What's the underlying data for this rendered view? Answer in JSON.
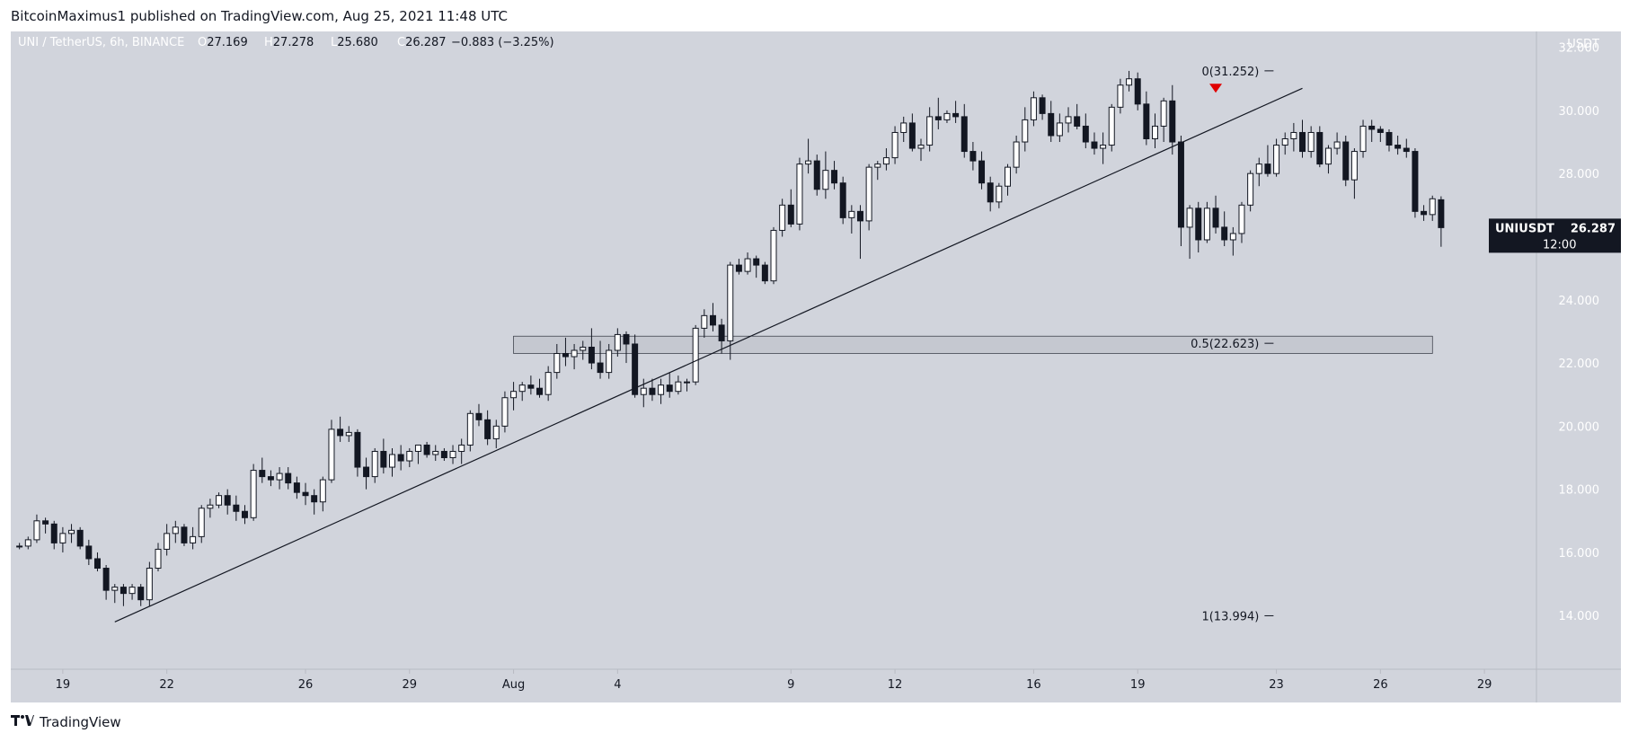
{
  "header": {
    "published": "BitcoinMaximus1 published on TradingView.com, Aug 25, 2021 11:48 UTC"
  },
  "footer": {
    "brand": "TradingView",
    "logo": "tv-logo-icon"
  },
  "colors": {
    "background": "#d1d4dc",
    "candle_up": "#ffffff",
    "candle_down": "#131722",
    "marker": "#e00000",
    "zone": "#c3c6ce"
  },
  "chart_data": {
    "type": "candlestick",
    "symbol": "UNI / TetherUS, 6h, BINANCE",
    "ohlc": {
      "o_label": "O",
      "o": "27.169",
      "h_label": "H",
      "h": "27.278",
      "l_label": "L",
      "l": "25.680",
      "c_label": "C",
      "c": "26.287",
      "change": "−0.883 (−3.25%)"
    },
    "currency": "USDT",
    "last_price": {
      "ticker": "UNIUSDT",
      "price": "26.287",
      "countdown": "12:00"
    },
    "ylim": [
      12.3,
      32.5
    ],
    "y_ticks": [
      {
        "v": 14,
        "label": "14.000"
      },
      {
        "v": 16,
        "label": "16.000"
      },
      {
        "v": 18,
        "label": "18.000"
      },
      {
        "v": 20,
        "label": "20.000"
      },
      {
        "v": 22,
        "label": "22.000"
      },
      {
        "v": 24,
        "label": "24.000"
      },
      {
        "v": 26,
        "label": "26.000"
      },
      {
        "v": 28,
        "label": "28.000"
      },
      {
        "v": 30,
        "label": "30.000"
      },
      {
        "v": 32,
        "label": "32.000"
      }
    ],
    "x_range": [
      "2021-07-17T12:00",
      "2021-08-30T12:00"
    ],
    "x_ticks": [
      {
        "t": "2021-07-19",
        "label": "19"
      },
      {
        "t": "2021-07-22",
        "label": "22"
      },
      {
        "t": "2021-07-26",
        "label": "26"
      },
      {
        "t": "2021-07-29",
        "label": "29"
      },
      {
        "t": "2021-08-01",
        "label": "Aug"
      },
      {
        "t": "2021-08-04",
        "label": "4"
      },
      {
        "t": "2021-08-09",
        "label": "9"
      },
      {
        "t": "2021-08-12",
        "label": "12"
      },
      {
        "t": "2021-08-16",
        "label": "16"
      },
      {
        "t": "2021-08-19",
        "label": "19"
      },
      {
        "t": "2021-08-23",
        "label": "23"
      },
      {
        "t": "2021-08-26",
        "label": "26"
      },
      {
        "t": "2021-08-29",
        "label": "29"
      }
    ],
    "candles_start": "2021-07-17T18:00",
    "candle_interval_hours": 6,
    "candles": [
      [
        16.2,
        16.3,
        16.1,
        16.2
      ],
      [
        16.2,
        16.5,
        16.1,
        16.4
      ],
      [
        16.4,
        17.2,
        16.3,
        17.0
      ],
      [
        17.0,
        17.1,
        16.6,
        16.9
      ],
      [
        16.9,
        17.0,
        16.1,
        16.3
      ],
      [
        16.3,
        16.8,
        16.0,
        16.6
      ],
      [
        16.6,
        16.9,
        16.3,
        16.7
      ],
      [
        16.7,
        16.8,
        16.1,
        16.2
      ],
      [
        16.2,
        16.4,
        15.6,
        15.8
      ],
      [
        15.8,
        16.0,
        15.4,
        15.5
      ],
      [
        15.5,
        15.6,
        14.5,
        14.8
      ],
      [
        14.8,
        15.0,
        14.4,
        14.9
      ],
      [
        14.9,
        15.0,
        14.3,
        14.7
      ],
      [
        14.7,
        15.0,
        14.5,
        14.9
      ],
      [
        14.9,
        15.0,
        14.3,
        14.5
      ],
      [
        14.5,
        15.7,
        14.3,
        15.5
      ],
      [
        15.5,
        16.3,
        15.4,
        16.1
      ],
      [
        16.1,
        16.9,
        15.9,
        16.6
      ],
      [
        16.6,
        17.0,
        16.3,
        16.8
      ],
      [
        16.8,
        16.9,
        16.2,
        16.3
      ],
      [
        16.3,
        16.8,
        16.1,
        16.5
      ],
      [
        16.5,
        17.5,
        16.3,
        17.4
      ],
      [
        17.4,
        17.7,
        17.1,
        17.5
      ],
      [
        17.5,
        17.9,
        17.4,
        17.8
      ],
      [
        17.8,
        18.0,
        17.2,
        17.5
      ],
      [
        17.5,
        17.8,
        17.0,
        17.3
      ],
      [
        17.3,
        17.5,
        16.9,
        17.1
      ],
      [
        17.1,
        18.8,
        17.0,
        18.6
      ],
      [
        18.6,
        19.0,
        18.2,
        18.4
      ],
      [
        18.4,
        18.6,
        18.1,
        18.3
      ],
      [
        18.3,
        18.7,
        18.0,
        18.5
      ],
      [
        18.5,
        18.7,
        18.0,
        18.2
      ],
      [
        18.2,
        18.4,
        17.7,
        17.9
      ],
      [
        17.9,
        18.2,
        17.5,
        17.8
      ],
      [
        17.8,
        18.0,
        17.2,
        17.6
      ],
      [
        17.6,
        18.4,
        17.3,
        18.3
      ],
      [
        18.3,
        20.2,
        18.2,
        19.9
      ],
      [
        19.9,
        20.3,
        19.5,
        19.7
      ],
      [
        19.7,
        20.0,
        19.5,
        19.8
      ],
      [
        19.8,
        19.9,
        18.4,
        18.7
      ],
      [
        18.7,
        19.0,
        18.0,
        18.4
      ],
      [
        18.4,
        19.3,
        18.2,
        19.2
      ],
      [
        19.2,
        19.6,
        18.5,
        18.7
      ],
      [
        18.7,
        19.3,
        18.4,
        19.1
      ],
      [
        19.1,
        19.4,
        18.6,
        18.9
      ],
      [
        18.9,
        19.3,
        18.7,
        19.2
      ],
      [
        19.2,
        19.4,
        18.8,
        19.4
      ],
      [
        19.4,
        19.5,
        19.0,
        19.1
      ],
      [
        19.1,
        19.4,
        18.9,
        19.2
      ],
      [
        19.2,
        19.3,
        18.9,
        19.0
      ],
      [
        19.0,
        19.4,
        18.8,
        19.2
      ],
      [
        19.2,
        19.6,
        18.8,
        19.4
      ],
      [
        19.4,
        20.5,
        19.2,
        20.4
      ],
      [
        20.4,
        20.7,
        20.0,
        20.2
      ],
      [
        20.2,
        20.5,
        19.4,
        19.6
      ],
      [
        19.6,
        20.2,
        19.3,
        20.0
      ],
      [
        20.0,
        21.1,
        19.8,
        20.9
      ],
      [
        20.9,
        21.4,
        20.5,
        21.1
      ],
      [
        21.1,
        21.4,
        20.8,
        21.3
      ],
      [
        21.3,
        21.6,
        21.0,
        21.2
      ],
      [
        21.2,
        21.5,
        20.9,
        21.0
      ],
      [
        21.0,
        21.9,
        20.8,
        21.7
      ],
      [
        21.7,
        22.6,
        21.5,
        22.3
      ],
      [
        22.3,
        22.8,
        21.9,
        22.2
      ],
      [
        22.2,
        22.6,
        21.8,
        22.4
      ],
      [
        22.4,
        22.7,
        22.1,
        22.5
      ],
      [
        22.5,
        23.1,
        21.8,
        22.0
      ],
      [
        22.0,
        22.7,
        21.5,
        21.7
      ],
      [
        21.7,
        22.6,
        21.5,
        22.4
      ],
      [
        22.4,
        23.1,
        22.2,
        22.9
      ],
      [
        22.9,
        23.0,
        22.0,
        22.6
      ],
      [
        22.6,
        22.9,
        20.9,
        21.0
      ],
      [
        21.0,
        21.5,
        20.6,
        21.2
      ],
      [
        21.2,
        21.5,
        20.8,
        21.0
      ],
      [
        21.0,
        21.5,
        20.7,
        21.3
      ],
      [
        21.3,
        21.7,
        20.9,
        21.1
      ],
      [
        21.1,
        21.6,
        21.0,
        21.4
      ],
      [
        21.4,
        21.5,
        21.1,
        21.4
      ],
      [
        21.4,
        23.2,
        21.3,
        23.1
      ],
      [
        23.1,
        23.7,
        22.8,
        23.5
      ],
      [
        23.5,
        23.9,
        23.0,
        23.2
      ],
      [
        23.2,
        23.4,
        22.3,
        22.7
      ],
      [
        22.7,
        25.2,
        22.1,
        25.1
      ],
      [
        25.1,
        25.3,
        24.8,
        24.9
      ],
      [
        24.9,
        25.5,
        24.8,
        25.3
      ],
      [
        25.3,
        25.4,
        24.7,
        25.1
      ],
      [
        25.1,
        25.2,
        24.5,
        24.6
      ],
      [
        24.6,
        26.3,
        24.5,
        26.2
      ],
      [
        26.2,
        27.2,
        26.0,
        27.0
      ],
      [
        27.0,
        27.5,
        26.3,
        26.4
      ],
      [
        26.4,
        28.5,
        26.2,
        28.3
      ],
      [
        28.3,
        29.1,
        28.0,
        28.4
      ],
      [
        28.4,
        28.6,
        27.3,
        27.5
      ],
      [
        27.5,
        28.7,
        27.2,
        28.1
      ],
      [
        28.1,
        28.4,
        27.5,
        27.7
      ],
      [
        27.7,
        27.9,
        26.4,
        26.6
      ],
      [
        26.6,
        27.0,
        26.1,
        26.8
      ],
      [
        26.8,
        27.0,
        25.3,
        26.5
      ],
      [
        26.5,
        28.3,
        26.2,
        28.2
      ],
      [
        28.2,
        28.4,
        27.8,
        28.3
      ],
      [
        28.3,
        28.8,
        28.1,
        28.5
      ],
      [
        28.5,
        29.5,
        28.3,
        29.3
      ],
      [
        29.3,
        29.8,
        29.0,
        29.6
      ],
      [
        29.6,
        29.9,
        28.7,
        28.8
      ],
      [
        28.8,
        29.1,
        28.4,
        28.9
      ],
      [
        28.9,
        30.1,
        28.7,
        29.8
      ],
      [
        29.8,
        30.4,
        29.4,
        29.7
      ],
      [
        29.7,
        30.0,
        29.6,
        29.9
      ],
      [
        29.9,
        30.3,
        29.6,
        29.8
      ],
      [
        29.8,
        30.2,
        28.5,
        28.7
      ],
      [
        28.7,
        29.0,
        28.1,
        28.4
      ],
      [
        28.4,
        28.7,
        27.5,
        27.7
      ],
      [
        27.7,
        27.9,
        26.8,
        27.1
      ],
      [
        27.1,
        27.7,
        26.9,
        27.6
      ],
      [
        27.6,
        28.3,
        27.3,
        28.2
      ],
      [
        28.2,
        29.2,
        28.0,
        29.0
      ],
      [
        29.0,
        30.1,
        28.7,
        29.7
      ],
      [
        29.7,
        30.6,
        29.5,
        30.4
      ],
      [
        30.4,
        30.5,
        29.7,
        29.9
      ],
      [
        29.9,
        30.3,
        29.0,
        29.2
      ],
      [
        29.2,
        29.9,
        29.0,
        29.6
      ],
      [
        29.6,
        30.1,
        29.3,
        29.8
      ],
      [
        29.8,
        30.2,
        29.4,
        29.5
      ],
      [
        29.5,
        29.9,
        28.8,
        29.0
      ],
      [
        29.0,
        29.3,
        28.6,
        28.8
      ],
      [
        28.8,
        29.3,
        28.3,
        28.9
      ],
      [
        28.9,
        30.2,
        28.7,
        30.1
      ],
      [
        30.1,
        31.0,
        29.9,
        30.8
      ],
      [
        30.8,
        31.25,
        30.6,
        31.0
      ],
      [
        31.0,
        31.2,
        30.0,
        30.2
      ],
      [
        30.2,
        30.6,
        28.9,
        29.1
      ],
      [
        29.1,
        29.9,
        28.8,
        29.5
      ],
      [
        29.5,
        30.4,
        29.0,
        30.3
      ],
      [
        30.3,
        30.8,
        28.6,
        29.0
      ],
      [
        29.0,
        29.2,
        25.7,
        26.3
      ],
      [
        26.3,
        27.0,
        25.3,
        26.9
      ],
      [
        26.9,
        27.1,
        25.5,
        25.9
      ],
      [
        25.9,
        27.1,
        25.8,
        26.9
      ],
      [
        26.9,
        27.3,
        26.1,
        26.3
      ],
      [
        26.3,
        26.8,
        25.7,
        25.9
      ],
      [
        25.9,
        26.3,
        25.4,
        26.1
      ],
      [
        26.1,
        27.1,
        25.8,
        27.0
      ],
      [
        27.0,
        28.1,
        26.8,
        28.0
      ],
      [
        28.0,
        28.5,
        27.6,
        28.3
      ],
      [
        28.3,
        28.9,
        27.9,
        28.0
      ],
      [
        28.0,
        29.1,
        27.9,
        28.9
      ],
      [
        28.9,
        29.3,
        28.6,
        29.1
      ],
      [
        29.1,
        29.6,
        28.7,
        29.3
      ],
      [
        29.3,
        29.7,
        28.5,
        28.7
      ],
      [
        28.7,
        29.5,
        28.5,
        29.3
      ],
      [
        29.3,
        29.5,
        28.2,
        28.3
      ],
      [
        28.3,
        28.9,
        28.0,
        28.8
      ],
      [
        28.8,
        29.3,
        28.6,
        29.0
      ],
      [
        29.0,
        29.2,
        27.6,
        27.8
      ],
      [
        27.8,
        28.8,
        27.2,
        28.7
      ],
      [
        28.7,
        29.7,
        28.5,
        29.5
      ],
      [
        29.5,
        29.7,
        29.0,
        29.4
      ],
      [
        29.4,
        29.5,
        29.0,
        29.3
      ],
      [
        29.3,
        29.4,
        28.7,
        28.9
      ],
      [
        28.9,
        29.2,
        28.6,
        28.8
      ],
      [
        28.8,
        29.1,
        28.5,
        28.7
      ],
      [
        28.7,
        28.8,
        26.6,
        26.8
      ],
      [
        26.8,
        27.0,
        26.5,
        26.7
      ],
      [
        26.7,
        27.3,
        26.5,
        27.2
      ],
      [
        27.169,
        27.278,
        25.68,
        26.287
      ]
    ],
    "trendline": {
      "start": [
        "2021-07-20T12:00",
        13.8
      ],
      "end": [
        "2021-08-23T18:00",
        30.7
      ]
    },
    "zone": {
      "start": "2021-08-01T00:00",
      "end": "2021-08-27T12:00",
      "low": 22.3,
      "high": 22.85
    },
    "fib_levels": [
      {
        "label": "0(31.252)",
        "value": 31.252
      },
      {
        "label": "0.5(22.623)",
        "value": 22.623
      },
      {
        "label": "1(13.994)",
        "value": 13.994
      }
    ],
    "fib_label_at": "2021-08-21T00:00",
    "marker": {
      "t": "2021-08-21T06:00",
      "v": 30.7,
      "shape": "down-triangle"
    }
  }
}
